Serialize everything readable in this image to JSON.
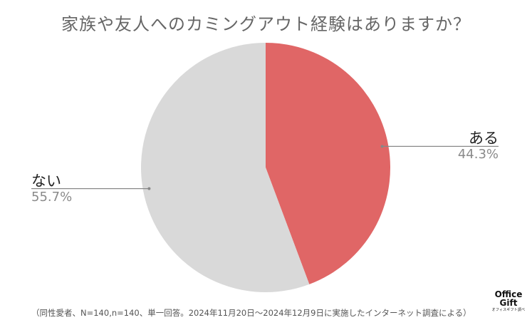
{
  "chart_data": {
    "type": "pie",
    "title": "家族や友人へのカミングアウト経験はありますか？",
    "slices": [
      {
        "label": "ある",
        "value": 44.3,
        "display": "44.3%",
        "color": "#e06666"
      },
      {
        "label": "ない",
        "value": 55.7,
        "display": "55.7%",
        "color": "#d9d9d9"
      }
    ],
    "start_angle": "12 o'clock",
    "direction": "clockwise",
    "legend": "none (labels beside slices)"
  },
  "footer": {
    "note": "（同性愛者、N=140,n=140、単一回答。2024年11月20日～2024年12月9日に実施したインターネット調査による）"
  },
  "logo": {
    "line1": "Office",
    "line2": "Gift",
    "sub": "オフィスギフト調べ"
  }
}
